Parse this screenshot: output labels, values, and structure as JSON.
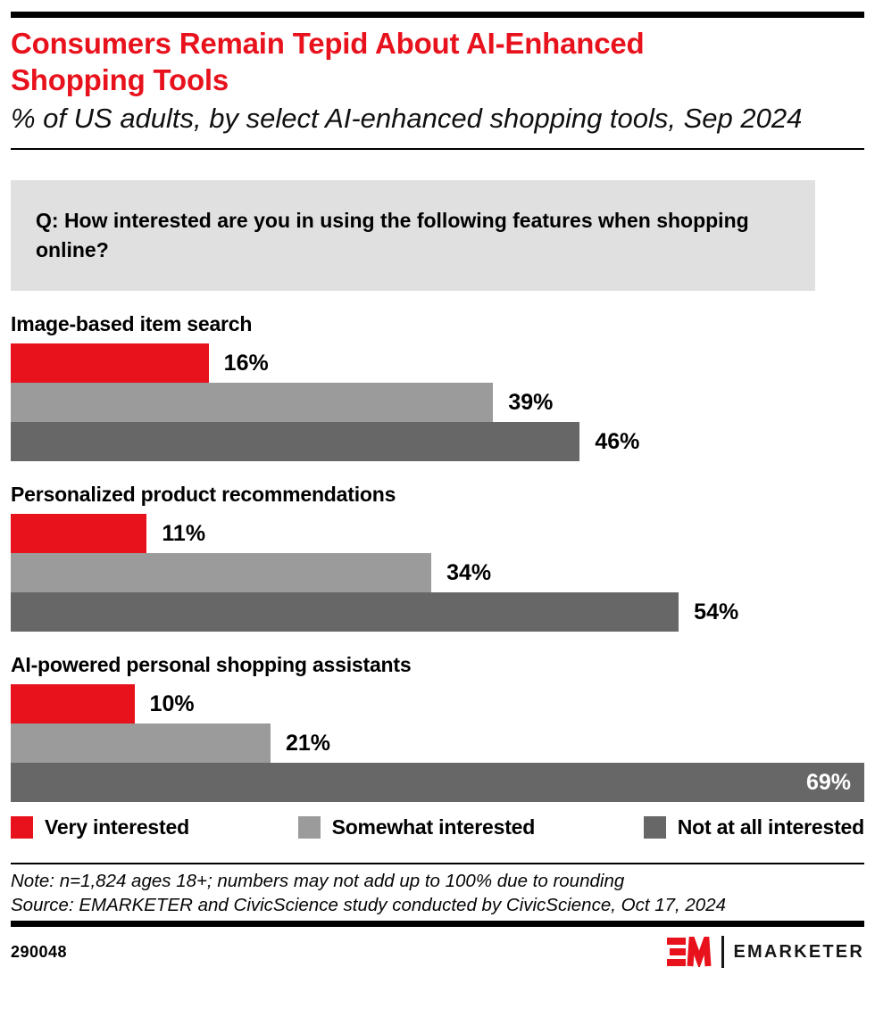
{
  "header": {
    "title": "Consumers Remain Tepid About AI-Enhanced Shopping Tools",
    "subtitle": "% of US adults, by select AI-enhanced shopping tools, Sep 2024"
  },
  "question": "Q: How interested are you in using the following features when shopping online?",
  "chart_data": {
    "type": "bar",
    "orientation": "horizontal",
    "title": "Consumers Remain Tepid About AI-Enhanced Shopping Tools",
    "categories": [
      "Image-based item search",
      "Personalized product recommendations",
      "AI-powered personal shopping assistants"
    ],
    "series": [
      {
        "name": "Very interested",
        "color": "#e8121d",
        "values": [
          16,
          11,
          10
        ],
        "labels": [
          "16%",
          "11%",
          "10%"
        ]
      },
      {
        "name": "Somewhat interested",
        "color": "#9b9b9b",
        "values": [
          39,
          34,
          21
        ],
        "labels": [
          "39%",
          "34%",
          "21%"
        ]
      },
      {
        "name": "Not at all interested",
        "color": "#676767",
        "values": [
          46,
          54,
          69
        ],
        "labels": [
          "46%",
          "54%",
          "69%"
        ]
      }
    ],
    "value_suffix": "%",
    "xlim": [
      0,
      69
    ],
    "grid": false,
    "legend_position": "bottom"
  },
  "footer": {
    "note": "Note: n=1,824 ages 18+; numbers may not add up to 100% due to rounding",
    "source": "Source: EMARKETER and CivicScience study conducted by CivicScience, Oct 17, 2024",
    "chart_id": "290048",
    "brand_wordmark": "EMARKETER"
  },
  "colors": {
    "accent_red": "#e8121d",
    "medium_gray": "#9b9b9b",
    "dark_gray": "#676767",
    "question_box_bg": "#e0e0e0",
    "rule_black": "#000000"
  }
}
